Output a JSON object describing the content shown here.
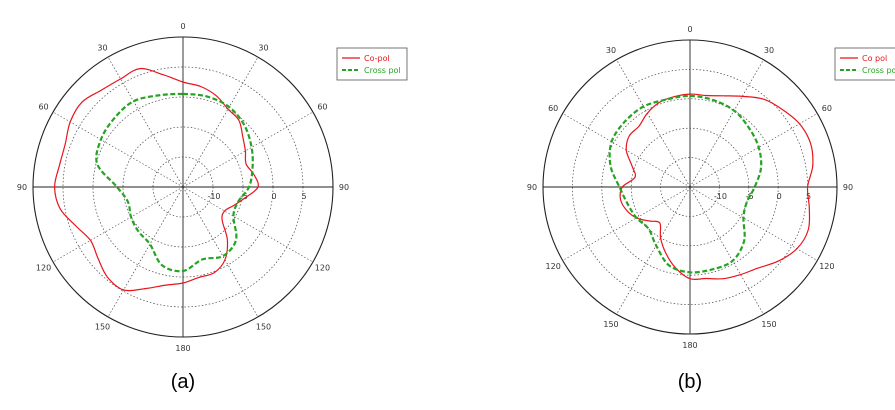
{
  "chart_data": [
    {
      "type": "polar-line",
      "caption": "(a)",
      "angle_labels": [
        "0",
        "30",
        "30",
        "60",
        "60",
        "90",
        "90",
        "120",
        "120",
        "150",
        "150",
        "180"
      ],
      "radial_labels": [
        "-10",
        "-5",
        "0",
        "5"
      ],
      "radial_range": [
        -15,
        10
      ],
      "grid": true,
      "legend_position": "top-right",
      "series": [
        {
          "name": "Co-pol",
          "color": "#e8141c",
          "style": "solid",
          "theta_deg": [
            0,
            10,
            20,
            30,
            40,
            50,
            60,
            70,
            80,
            90,
            100,
            110,
            120,
            130,
            140,
            150,
            160,
            170,
            180,
            190,
            200,
            210,
            220,
            230,
            240,
            250,
            260,
            270,
            280,
            290,
            300,
            310,
            320,
            330,
            340,
            350
          ],
          "r_db": [
            2.5,
            2.0,
            1.2,
            0.0,
            -0.5,
            -2.0,
            -3.0,
            -3.8,
            -3.0,
            -2.5,
            -4.5,
            -6.0,
            -7.0,
            -6.5,
            -3.5,
            -1.0,
            0.2,
            0.3,
            1.0,
            1.6,
            3.0,
            4.8,
            4.6,
            3.5,
            2.8,
            4.0,
            5.8,
            6.4,
            5.9,
            5.9,
            6.7,
            7.0,
            6.1,
            5.8,
            6.0,
            4.0
          ]
        },
        {
          "name": "Cross pol",
          "color": "#25a424",
          "style": "dashed",
          "theta_deg": [
            0,
            15,
            30,
            45,
            60,
            75,
            90,
            105,
            120,
            135,
            150,
            165,
            180,
            195,
            210,
            225,
            240,
            255,
            270,
            285,
            300,
            315,
            330,
            345
          ],
          "r_db": [
            0.5,
            0.6,
            0.4,
            -0.5,
            -1.8,
            -3.0,
            -4.0,
            -5.5,
            -5.3,
            -2.5,
            -1.7,
            -2.5,
            -1.0,
            -1.5,
            -4.0,
            -4.5,
            -5.0,
            -5.5,
            -4.0,
            -0.2,
            0.8,
            1.2,
            1.5,
            0.8
          ]
        }
      ]
    },
    {
      "type": "polar-line",
      "caption": "(b)",
      "angle_labels": [
        "0",
        "30",
        "30",
        "60",
        "60",
        "90",
        "90",
        "120",
        "120",
        "150",
        "150",
        "180"
      ],
      "radial_labels": [
        "-10",
        "-5",
        "0",
        "5"
      ],
      "radial_range": [
        -15,
        10
      ],
      "grid": true,
      "legend_position": "top-right",
      "series": [
        {
          "name": "Co pol",
          "color": "#e8141c",
          "style": "solid",
          "theta_deg": [
            0,
            10,
            20,
            30,
            40,
            50,
            60,
            70,
            80,
            90,
            100,
            110,
            120,
            130,
            140,
            150,
            160,
            170,
            180,
            190,
            200,
            210,
            220,
            230,
            240,
            250,
            260,
            270,
            280,
            290,
            300,
            310,
            320,
            330,
            340,
            350
          ],
          "r_db": [
            0.8,
            0.8,
            1.5,
            2.8,
            4.5,
            5.5,
            6.5,
            6.8,
            6.2,
            5.0,
            5.6,
            6.4,
            6.0,
            4.6,
            3.0,
            2.2,
            1.6,
            0.8,
            0.6,
            -1.0,
            -3.0,
            -5.0,
            -7.0,
            -6.0,
            -4.5,
            -3.5,
            -3.0,
            -3.5,
            -5.5,
            -4.5,
            -2.5,
            -1.5,
            -1.5,
            -0.5,
            0.3,
            0.6
          ]
        },
        {
          "name": "Cross pol",
          "color": "#25a424",
          "style": "dashed",
          "theta_deg": [
            0,
            15,
            30,
            45,
            60,
            75,
            90,
            105,
            120,
            135,
            150,
            165,
            180,
            195,
            210,
            225,
            240,
            255,
            270,
            285,
            300,
            315,
            330,
            345
          ],
          "r_db": [
            0.5,
            0.3,
            0.0,
            -0.8,
            -1.5,
            -2.5,
            -4.0,
            -5.0,
            -4.5,
            -2.0,
            -0.5,
            -0.5,
            -0.5,
            -1.2,
            -3.5,
            -5.0,
            -4.5,
            -4.0,
            -3.0,
            -1.0,
            0.4,
            0.7,
            0.8,
            0.4
          ]
        }
      ]
    }
  ]
}
